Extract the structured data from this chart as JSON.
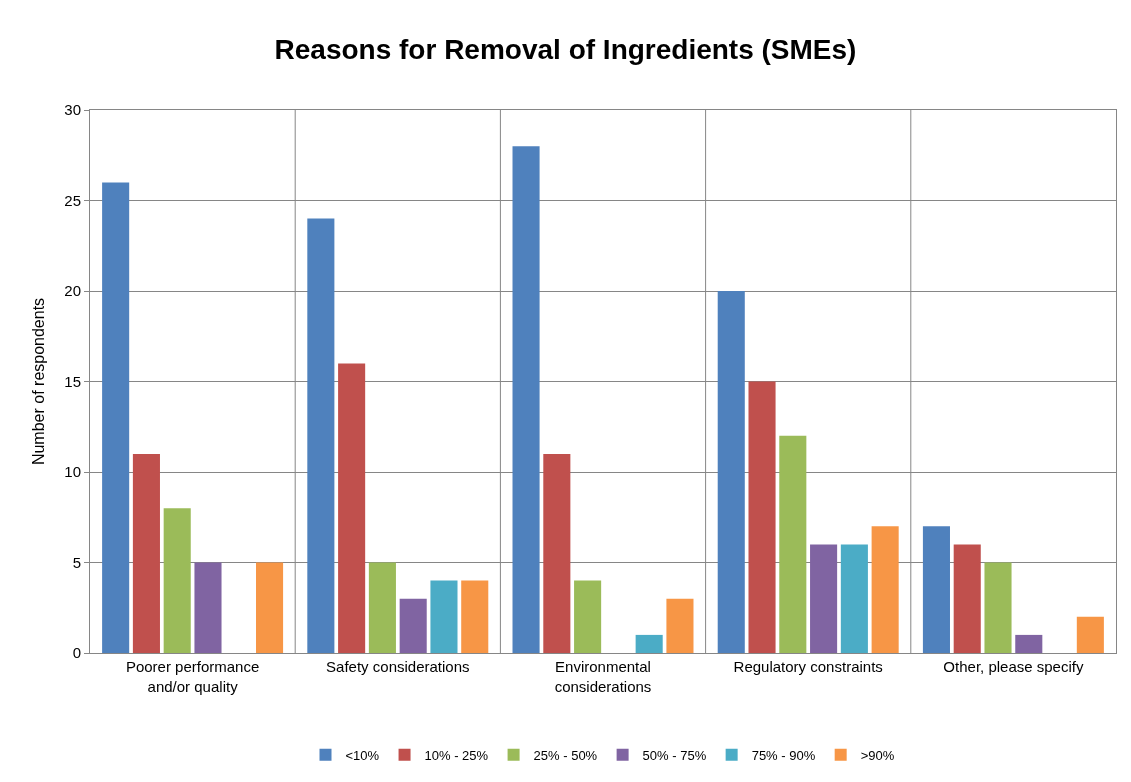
{
  "chart_data": {
    "type": "bar",
    "title": "Reasons for Removal of Ingredients (SMEs)",
    "ylabel": "Number of respondents",
    "categories": [
      "Poorer performance and/or quality",
      "Safety considerations",
      "Environmental considerations",
      "Regulatory constraints",
      "Other, please specify"
    ],
    "series": [
      {
        "name": "<10%",
        "color": "#4f81bd",
        "values": [
          26,
          24,
          28,
          20,
          7
        ]
      },
      {
        "name": "10% - 25%",
        "color": "#c0504d",
        "values": [
          11,
          16,
          11,
          15,
          6
        ]
      },
      {
        "name": "25% - 50%",
        "color": "#9bbb59",
        "values": [
          8,
          5,
          4,
          12,
          5
        ]
      },
      {
        "name": "50% - 75%",
        "color": "#8064a2",
        "values": [
          5,
          3,
          0,
          6,
          1
        ]
      },
      {
        "name": "75% - 90%",
        "color": "#4bacc6",
        "values": [
          0,
          4,
          1,
          6,
          0
        ]
      },
      {
        "name": ">90%",
        "color": "#f79646",
        "values": [
          5,
          4,
          3,
          7,
          2
        ]
      }
    ],
    "ylim": [
      0,
      30
    ],
    "yticks": [
      0,
      5,
      10,
      15,
      20,
      25,
      30
    ],
    "grid": true,
    "legend": "bottom"
  }
}
